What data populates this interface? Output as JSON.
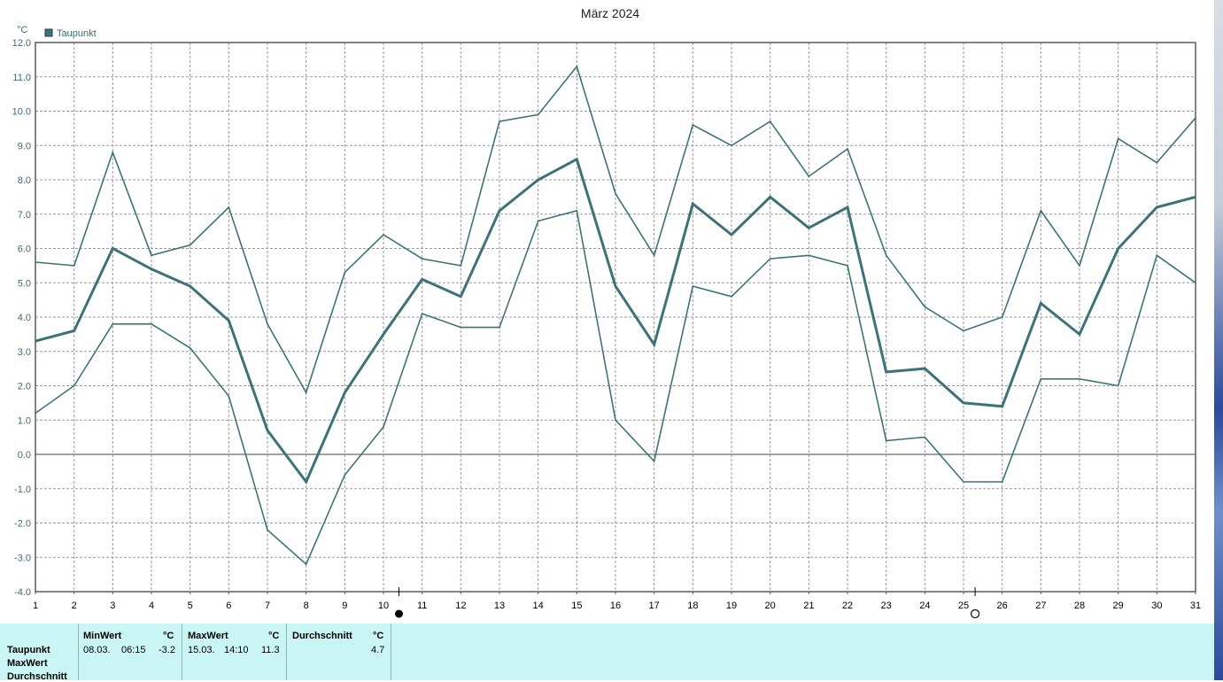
{
  "chart_data": {
    "type": "line",
    "title": "März 2024",
    "ylabel": "°C",
    "ylim": [
      -4.0,
      12.0
    ],
    "y_ticks": [
      "12.0",
      "11.0",
      "10.0",
      "9.0",
      "8.0",
      "7.0",
      "6.0",
      "5.0",
      "4.0",
      "3.0",
      "2.0",
      "1.0",
      "0.0",
      "-1.0",
      "-2.0",
      "-3.0",
      "-4.0"
    ],
    "x_ticks": [
      "1",
      "2",
      "3",
      "4",
      "5",
      "6",
      "7",
      "8",
      "9",
      "10",
      "11",
      "12",
      "13",
      "14",
      "15",
      "16",
      "17",
      "18",
      "19",
      "20",
      "21",
      "22",
      "23",
      "24",
      "25",
      "26",
      "27",
      "28",
      "29",
      "30",
      "31"
    ],
    "grid": true,
    "legend": {
      "position": "top-left",
      "entries": [
        "Taupunkt"
      ]
    },
    "color": "#3d7378",
    "series": [
      {
        "name": "Taupunkt",
        "values": [
          3.3,
          3.6,
          6.0,
          5.4,
          4.9,
          3.9,
          0.7,
          -0.8,
          1.8,
          3.5,
          5.1,
          4.6,
          7.1,
          8.0,
          8.6,
          4.9,
          3.2,
          7.3,
          6.4,
          7.5,
          6.6,
          7.2,
          2.4,
          2.5,
          1.5,
          1.4,
          4.4,
          3.5,
          6.0,
          7.2,
          7.5
        ]
      },
      {
        "values": [
          5.6,
          5.5,
          8.8,
          5.8,
          6.1,
          7.2,
          3.8,
          1.8,
          5.3,
          6.4,
          5.7,
          5.5,
          9.7,
          9.9,
          11.3,
          7.6,
          5.8,
          9.6,
          9.0,
          9.7,
          8.1,
          8.9,
          5.8,
          4.3,
          3.6,
          4.0,
          7.1,
          5.5,
          9.2,
          8.5,
          9.8
        ]
      },
      {
        "values": [
          1.2,
          2.0,
          3.8,
          3.8,
          3.1,
          1.7,
          -2.2,
          -3.2,
          -0.6,
          0.8,
          4.1,
          3.7,
          3.7,
          6.8,
          7.1,
          1.0,
          -0.2,
          4.9,
          4.6,
          5.7,
          5.8,
          5.5,
          0.4,
          0.5,
          -0.8,
          -0.8,
          2.2,
          2.2,
          2.0,
          5.8,
          5.0
        ]
      }
    ],
    "moon_markers": [
      {
        "x": 10.4,
        "symbol": "full-moon"
      },
      {
        "x": 25.3,
        "symbol": "new-moon"
      }
    ]
  },
  "stats": {
    "row_labels": [
      "Taupunkt",
      "MaxWert",
      "Durchschnitt"
    ],
    "columns": [
      {
        "header": "MinWert",
        "unit": "°C",
        "date": "08.03.",
        "time": "06:15",
        "value": "-3.2"
      },
      {
        "header": "MaxWert",
        "unit": "°C",
        "date": "15.03.",
        "time": "14:10",
        "value": "11.3"
      },
      {
        "header": "Durchschnitt",
        "unit": "°C",
        "value": "4.7"
      }
    ]
  }
}
